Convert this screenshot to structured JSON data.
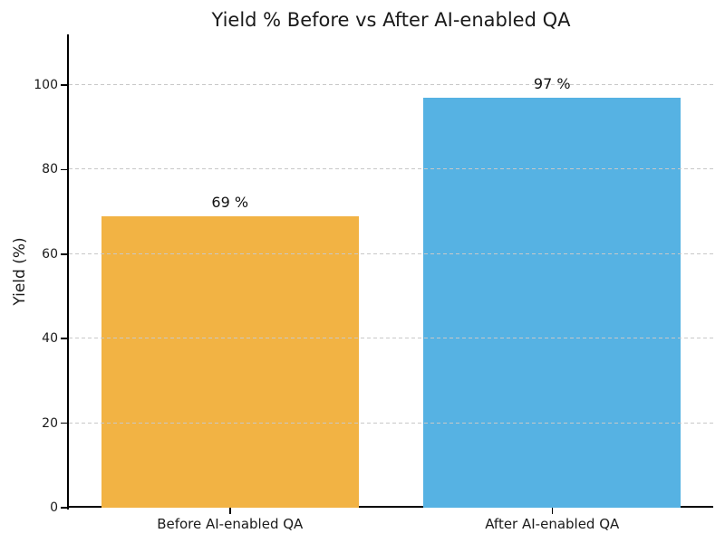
{
  "chart_data": {
    "type": "bar",
    "title": "Yield % Before vs After AI-enabled QA",
    "xlabel": "",
    "ylabel": "Yield (%)",
    "categories": [
      "Before AI-enabled QA",
      "After AI-enabled QA"
    ],
    "values": [
      69,
      97
    ],
    "bar_labels": [
      "69 %",
      "97 %"
    ],
    "bar_colors": [
      "#F2B344",
      "#56B2E3"
    ],
    "ylim": [
      0,
      112
    ],
    "yticks": [
      0,
      20,
      40,
      60,
      80,
      100
    ],
    "grid": "horizontal dashed gridlines at yticks above 0",
    "legend": "none",
    "spines": [
      "left",
      "bottom"
    ]
  },
  "colors": {
    "background": "#FFFFFF",
    "grid": "#C8C8C8",
    "spine": "#000000",
    "text": "#1A1A1A"
  }
}
